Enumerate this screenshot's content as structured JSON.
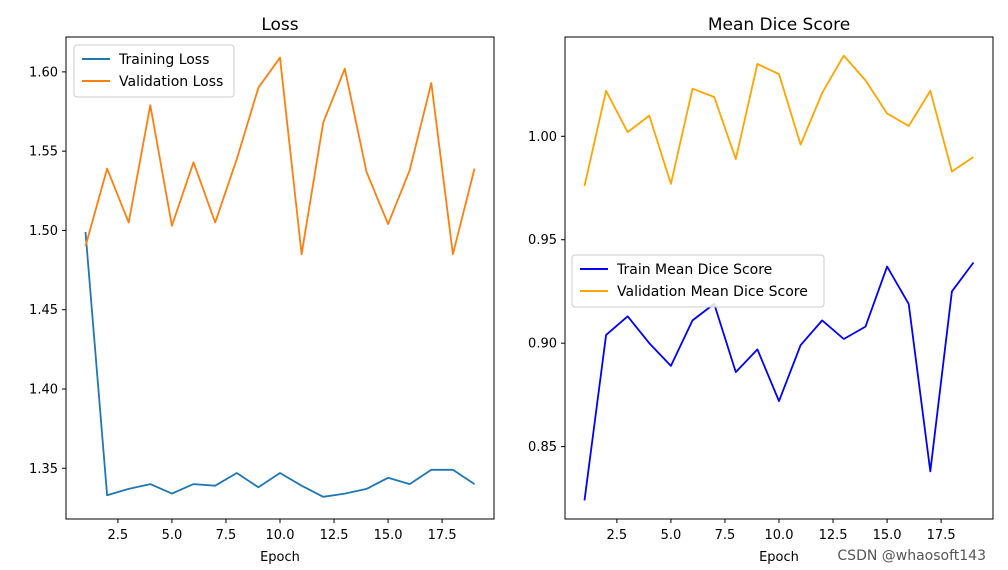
{
  "watermark": "CSDN @whaosoft143",
  "chart_data": [
    {
      "type": "line",
      "title": "Loss",
      "xlabel": "Epoch",
      "ylabel": "",
      "xlim": [
        0.1,
        19.9
      ],
      "ylim": [
        1.318,
        1.622
      ],
      "x_ticks": [
        2.5,
        5.0,
        7.5,
        10.0,
        12.5,
        15.0,
        17.5
      ],
      "x_tick_labels": [
        "2.5",
        "5.0",
        "7.5",
        "10.0",
        "12.5",
        "15.0",
        "17.5"
      ],
      "y_ticks": [
        1.35,
        1.4,
        1.45,
        1.5,
        1.55,
        1.6
      ],
      "y_tick_labels": [
        "1.35",
        "1.40",
        "1.45",
        "1.50",
        "1.55",
        "1.60"
      ],
      "grid": false,
      "legend_position": "top-left",
      "x": [
        1,
        2,
        3,
        4,
        5,
        6,
        7,
        8,
        9,
        10,
        11,
        12,
        13,
        14,
        15,
        16,
        17,
        18,
        19
      ],
      "series": [
        {
          "name": "Training Loss",
          "color": "#1f77b4",
          "values": [
            1.499,
            1.333,
            1.337,
            1.34,
            1.334,
            1.34,
            1.339,
            1.347,
            1.338,
            1.347,
            1.339,
            1.332,
            1.334,
            1.337,
            1.344,
            1.34,
            1.349,
            1.349,
            1.34
          ]
        },
        {
          "name": "Validation Loss",
          "color": "#ff7f0e",
          "values": [
            1.49,
            1.539,
            1.505,
            1.579,
            1.503,
            1.543,
            1.505,
            1.545,
            1.59,
            1.609,
            1.485,
            1.568,
            1.602,
            1.537,
            1.504,
            1.538,
            1.593,
            1.485,
            1.539
          ]
        }
      ]
    },
    {
      "type": "line",
      "title": "Mean Dice Score",
      "xlabel": "Epoch",
      "ylabel": "",
      "xlim": [
        0.1,
        19.9
      ],
      "ylim": [
        0.815,
        1.048
      ],
      "x_ticks": [
        2.5,
        5.0,
        7.5,
        10.0,
        12.5,
        15.0,
        17.5
      ],
      "x_tick_labels": [
        "2.5",
        "5.0",
        "7.5",
        "10.0",
        "12.5",
        "15.0",
        "17.5"
      ],
      "y_ticks": [
        0.85,
        0.9,
        0.95,
        1.0
      ],
      "y_tick_labels": [
        "0.85",
        "0.90",
        "0.95",
        "1.00"
      ],
      "grid": false,
      "legend_position": "center-left",
      "x": [
        1,
        2,
        3,
        4,
        5,
        6,
        7,
        8,
        9,
        10,
        11,
        12,
        13,
        14,
        15,
        16,
        17,
        18,
        19
      ],
      "series": [
        {
          "name": "Train Mean Dice Score",
          "color": "#0000ff",
          "values": [
            0.824,
            0.904,
            0.913,
            0.9,
            0.889,
            0.911,
            0.919,
            0.886,
            0.897,
            0.872,
            0.899,
            0.911,
            0.902,
            0.908,
            0.937,
            0.919,
            0.838,
            0.925,
            0.939
          ]
        },
        {
          "name": "Validation Mean Dice Score",
          "color": "#ffa500",
          "values": [
            0.976,
            1.022,
            1.002,
            1.01,
            0.977,
            1.023,
            1.019,
            0.989,
            1.035,
            1.03,
            0.996,
            1.021,
            1.039,
            1.027,
            1.011,
            1.005,
            1.022,
            0.983,
            0.99
          ]
        }
      ]
    }
  ]
}
